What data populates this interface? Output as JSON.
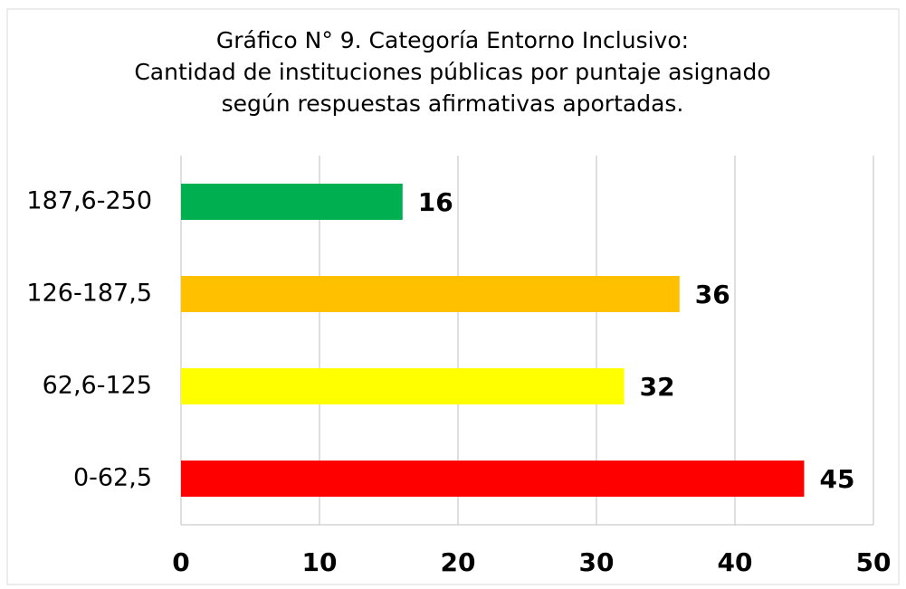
{
  "chart_data": {
    "type": "barh",
    "title": [
      "Gráfico N° 9. Categoría Entorno Inclusivo:",
      "Cantidad de instituciones públicas por puntaje asignado",
      "según respuestas afirmativas aportadas."
    ],
    "categories": [
      "187,6-250",
      "126-187,5",
      "62,6-125",
      "0-62,5"
    ],
    "values": [
      16,
      36,
      32,
      45
    ],
    "colors": [
      "#00b050",
      "#ffc000",
      "#ffff00",
      "#ff0000"
    ],
    "xlim": [
      0,
      50
    ],
    "xticks": [
      0,
      10,
      20,
      30,
      40,
      50
    ],
    "grid": true
  }
}
